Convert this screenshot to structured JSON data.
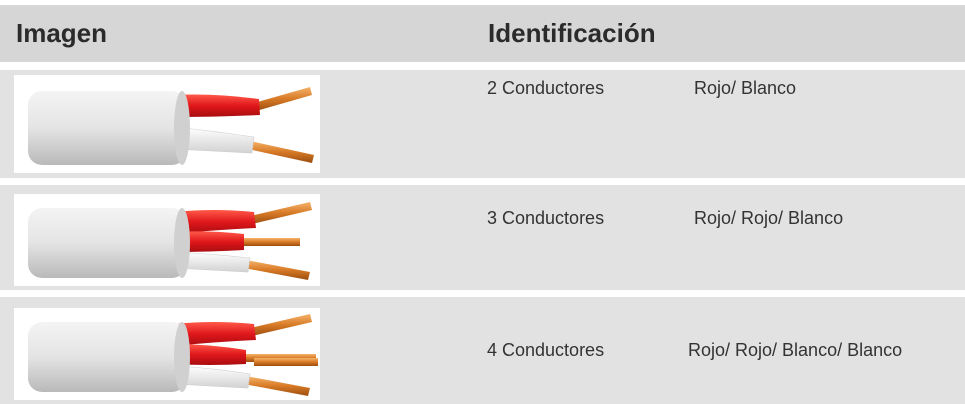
{
  "header": {
    "image": "Imagen",
    "identification": "Identificación"
  },
  "rows": [
    {
      "conductors": "2 Conductores",
      "colors": "Rojo/ Blanco"
    },
    {
      "conductors": "3 Conductores",
      "colors": "Rojo/ Rojo/ Blanco"
    },
    {
      "conductors": "4 Conductores",
      "colors": "Rojo/ Rojo/ Blanco/ Blanco"
    }
  ]
}
